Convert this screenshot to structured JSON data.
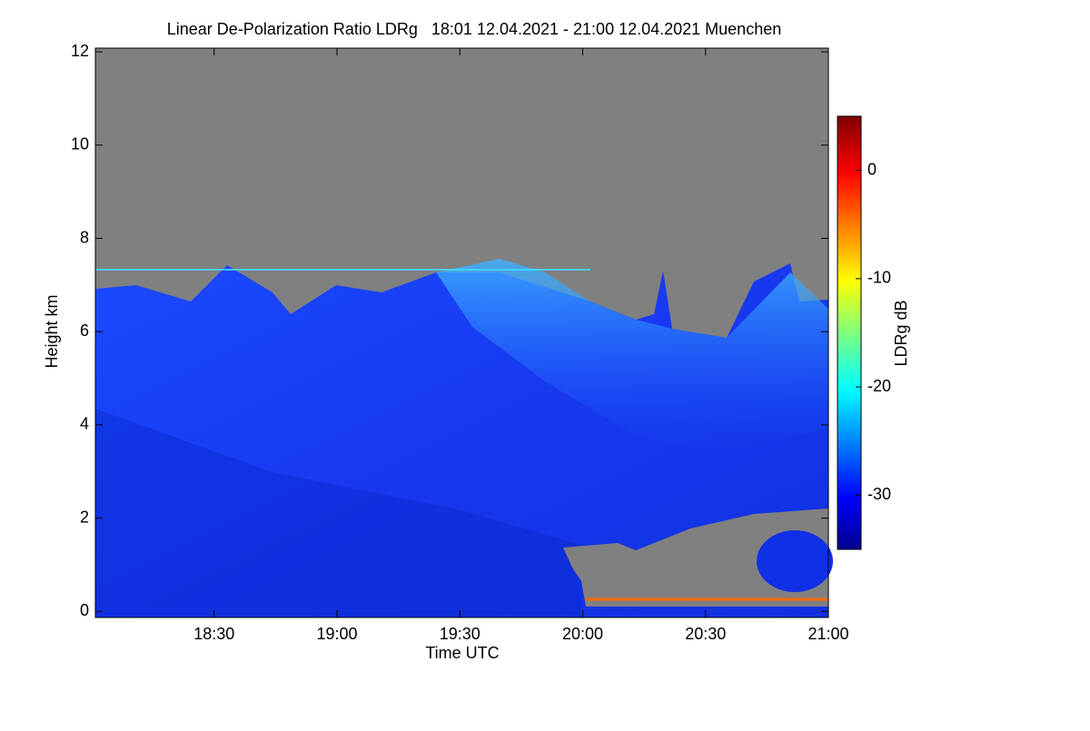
{
  "chart_data": {
    "type": "heatmap",
    "title": "Linear De-Polarization Ratio LDRg   18:01 12.04.2021 - 21:00 12.04.2021 Muenchen",
    "xlabel": "Time UTC",
    "ylabel": "Height km",
    "colorbar_label": "LDRg dB",
    "xlim": [
      1081,
      1260
    ],
    "xticks": [
      {
        "value": 1110,
        "label": "18:30"
      },
      {
        "value": 1140,
        "label": "19:00"
      },
      {
        "value": 1170,
        "label": "19:30"
      },
      {
        "value": 1200,
        "label": "20:00"
      },
      {
        "value": 1230,
        "label": "20:30"
      },
      {
        "value": 1260,
        "label": "21:00"
      }
    ],
    "ylim": [
      -0.13,
      12.08
    ],
    "yticks": [
      0,
      2,
      4,
      6,
      8,
      10,
      12
    ],
    "clim": [
      -35,
      5
    ],
    "cticks": [
      0,
      -10,
      -20,
      -30
    ]
  }
}
